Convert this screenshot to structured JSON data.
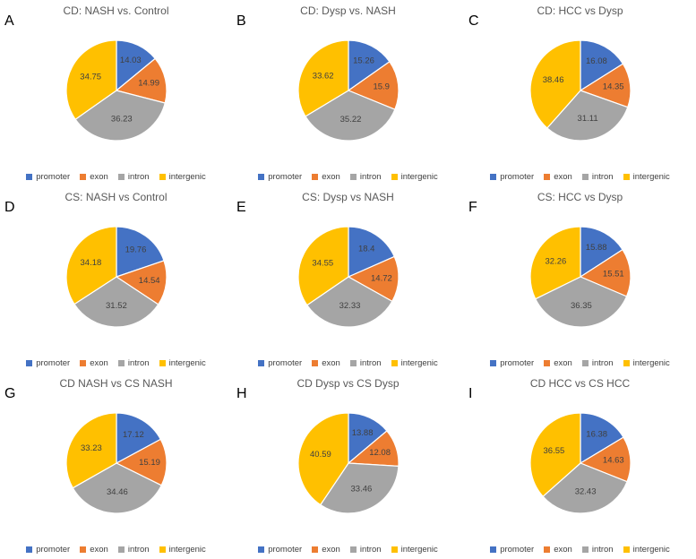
{
  "page": {
    "background": "#ffffff"
  },
  "colors": {
    "promoter": "#4472C4",
    "exon": "#ED7D31",
    "intron": "#A5A5A5",
    "intergenic": "#FFC000",
    "slice_label_text": "#404040",
    "title_text": "#595959",
    "letter_text": "#000000"
  },
  "legend": {
    "labels": [
      "promoter",
      "exon",
      "intron",
      "intergenic"
    ]
  },
  "chart_data": [
    {
      "type": "pie",
      "letter": "A",
      "title": "CD: NASH vs. Control",
      "categories": [
        "promoter",
        "exon",
        "intron",
        "intergenic"
      ],
      "values": [
        14.03,
        14.99,
        36.23,
        34.75
      ],
      "legend_position": "bottom"
    },
    {
      "type": "pie",
      "letter": "B",
      "title": "CD: Dysp vs. NASH",
      "categories": [
        "promoter",
        "exon",
        "intron",
        "intergenic"
      ],
      "values": [
        15.26,
        15.9,
        35.22,
        33.62
      ],
      "legend_position": "bottom"
    },
    {
      "type": "pie",
      "letter": "C",
      "title": "CD: HCC vs Dysp",
      "categories": [
        "promoter",
        "exon",
        "intron",
        "intergenic"
      ],
      "values": [
        16.08,
        14.35,
        31.11,
        38.46
      ],
      "legend_position": "bottom"
    },
    {
      "type": "pie",
      "letter": "D",
      "title": "CS: NASH vs Control",
      "categories": [
        "promoter",
        "exon",
        "intron",
        "intergenic"
      ],
      "values": [
        19.76,
        14.54,
        31.52,
        34.18
      ],
      "legend_position": "bottom"
    },
    {
      "type": "pie",
      "letter": "E",
      "title": "CS: Dysp vs NASH",
      "categories": [
        "promoter",
        "exon",
        "intron",
        "intergenic"
      ],
      "values": [
        18.4,
        14.72,
        32.33,
        34.55
      ],
      "legend_position": "bottom"
    },
    {
      "type": "pie",
      "letter": "F",
      "title": "CS: HCC vs Dysp",
      "categories": [
        "promoter",
        "exon",
        "intron",
        "intergenic"
      ],
      "values": [
        15.88,
        15.51,
        36.35,
        32.26
      ],
      "legend_position": "bottom"
    },
    {
      "type": "pie",
      "letter": "G",
      "title": "CD NASH vs CS NASH",
      "categories": [
        "promoter",
        "exon",
        "intron",
        "intergenic"
      ],
      "values": [
        17.12,
        15.19,
        34.46,
        33.23
      ],
      "legend_position": "bottom"
    },
    {
      "type": "pie",
      "letter": "H",
      "title": "CD Dysp vs CS Dysp",
      "categories": [
        "promoter",
        "exon",
        "intron",
        "intergenic"
      ],
      "values": [
        13.88,
        12.08,
        33.46,
        40.59
      ],
      "legend_position": "bottom"
    },
    {
      "type": "pie",
      "letter": "I",
      "title": "CD HCC vs CS HCC",
      "categories": [
        "promoter",
        "exon",
        "intron",
        "intergenic"
      ],
      "values": [
        16.38,
        14.63,
        32.43,
        36.55
      ],
      "legend_position": "bottom"
    }
  ]
}
